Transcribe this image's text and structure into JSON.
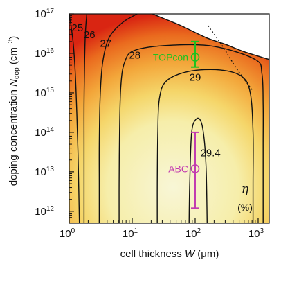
{
  "chart_data": {
    "type": "heatmap",
    "title": "",
    "x_axis": {
      "label_main": "cell thickness ",
      "label_symbol": "W",
      "label_unit": " (μm)",
      "scale": "log",
      "range": [
        1,
        1500
      ],
      "ticks": [
        {
          "value": 1,
          "label": "10",
          "exp": "0"
        },
        {
          "value": 10,
          "label": "10",
          "exp": "1"
        },
        {
          "value": 100,
          "label": "10",
          "exp": "2"
        },
        {
          "value": 1000,
          "label": "10",
          "exp": "3"
        }
      ]
    },
    "y_axis": {
      "label_main": "doping concentration ",
      "label_symbol": "N",
      "label_sub": "dop",
      "label_unit": " (cm",
      "label_unit_exp": "−3",
      "label_unit_end": ")",
      "scale": "log",
      "range": [
        500000000000.0,
        1e+17
      ],
      "ticks": [
        {
          "value": 1000000000000.0,
          "label": "10",
          "exp": "12"
        },
        {
          "value": 10000000000000.0,
          "label": "10",
          "exp": "13"
        },
        {
          "value": 100000000000000.0,
          "label": "10",
          "exp": "14"
        },
        {
          "value": 1000000000000000.0,
          "label": "10",
          "exp": "15"
        },
        {
          "value": 1e+16,
          "label": "10",
          "exp": "16"
        },
        {
          "value": 1e+17,
          "label": "10",
          "exp": "17"
        }
      ]
    },
    "colorbar_label": {
      "symbol": "η",
      "unit": "(%)"
    },
    "contours": [
      {
        "level": "25",
        "label_at": [
          1.35,
          4.5e+16
        ],
        "points": [
          [
            1.0,
            1e+17
          ],
          [
            1.15,
            2e+16
          ],
          [
            1.25,
            3000000000000000.0
          ],
          [
            1.32,
            300000000000000.0
          ],
          [
            1.38,
            30000000000000.0
          ],
          [
            1.42,
            3000000000000.0
          ],
          [
            1.45,
            500000000000.0
          ]
        ]
      },
      {
        "level": "26",
        "label_at": [
          2.1,
          3e+16
        ],
        "points": [
          [
            1.9,
            1e+17
          ],
          [
            1.8,
            3e+16
          ],
          [
            1.75,
            5000000000000000.0
          ],
          [
            1.72,
            500000000000000.0
          ],
          [
            1.72,
            50000000000000.0
          ],
          [
            1.72,
            5000000000000.0
          ],
          [
            1.72,
            500000000000.0
          ]
        ]
      },
      {
        "level": "27",
        "label_at": [
          3.8,
          1.8e+16
        ],
        "points": [
          [
            12,
            1e+17
          ],
          [
            7,
            6e+16
          ],
          [
            4.3,
            2.5e+16
          ],
          [
            3.4,
            6000000000000000.0
          ],
          [
            3.1,
            800000000000000.0
          ],
          [
            3.0,
            50000000000000.0
          ],
          [
            3.0,
            5000000000000.0
          ],
          [
            3.0,
            500000000000.0
          ]
        ]
      },
      {
        "level": "28",
        "label_at": [
          11,
          9000000000000000.0
        ],
        "points": [
          [
            6.2,
            500000000000.0
          ],
          [
            6.2,
            5000000000000.0
          ],
          [
            6.3,
            100000000000000.0
          ],
          [
            6.6,
            1500000000000000.0
          ],
          [
            7.6,
            6000000000000000.0
          ],
          [
            11,
            1.2e+16
          ],
          [
            40,
            1.6e+16
          ],
          [
            200,
            1.5e+16
          ],
          [
            900,
            7000000000000000.0
          ],
          [
            1150,
            3000000000000000.0
          ],
          [
            1200,
            500000000000000.0
          ],
          [
            1200,
            50000000000000.0
          ],
          [
            1200,
            5000000000000.0
          ],
          [
            1200,
            500000000000.0
          ]
        ]
      },
      {
        "level": "29",
        "label_at": [
          100,
          2500000000000000.0
        ],
        "points": [
          [
            25,
            500000000000.0
          ],
          [
            25,
            5000000000000.0
          ],
          [
            25.5,
            100000000000000.0
          ],
          [
            27,
            700000000000000.0
          ],
          [
            35,
            2000000000000000.0
          ],
          [
            80,
            3500000000000000.0
          ],
          [
            250,
            3800000000000000.0
          ],
          [
            550,
            2600000000000000.0
          ],
          [
            750,
            1000000000000000.0
          ],
          [
            830,
            100000000000000.0
          ],
          [
            830,
            5000000000000.0
          ],
          [
            830,
            500000000000.0
          ]
        ]
      },
      {
        "level": "29.4",
        "label_at": [
          175,
          30000000000000.0
        ],
        "points": [
          [
            80,
            500000000000.0
          ],
          [
            82,
            5000000000000.0
          ],
          [
            88,
            100000000000000.0
          ],
          [
            105,
            220000000000000.0
          ],
          [
            125,
            180000000000000.0
          ],
          [
            140,
            60000000000000.0
          ],
          [
            150,
            10000000000000.0
          ],
          [
            155,
            500000000000.0
          ]
        ]
      }
    ],
    "boundaries": [
      {
        "name": "excluded-region-edge",
        "points": [
          [
            21,
            1e+17
          ],
          [
            60,
            5e+16
          ],
          [
            150,
            2.5e+16
          ],
          [
            300,
            1.7e+16
          ],
          [
            600,
            1.1e+16
          ],
          [
            1500,
            7000000000000000.0
          ]
        ]
      },
      {
        "name": "dotted-limit",
        "points": [
          [
            160,
            5e+16
          ],
          [
            220,
            2.5e+16
          ],
          [
            300,
            1.2e+16
          ],
          [
            420,
            5000000000000000.0
          ],
          [
            600,
            2200000000000000.0
          ],
          [
            800,
            1200000000000000.0
          ]
        ]
      }
    ],
    "markers": [
      {
        "label": "TOPcon",
        "x": 100,
        "y": 8000000000000000.0,
        "y_low": 4500000000000000.0,
        "y_high": 2e+16,
        "color": "#1fc21f"
      },
      {
        "label": "ABC",
        "x": 100,
        "y": 12000000000000.0,
        "y_low": 1200000000000.0,
        "y_high": 100000000000000.0,
        "color": "#c23bb0"
      }
    ],
    "colors": {
      "low": "#d81f10",
      "mid": "#f5a623",
      "high": "#f8f5cf",
      "region_excluded": "#ffffff"
    }
  }
}
